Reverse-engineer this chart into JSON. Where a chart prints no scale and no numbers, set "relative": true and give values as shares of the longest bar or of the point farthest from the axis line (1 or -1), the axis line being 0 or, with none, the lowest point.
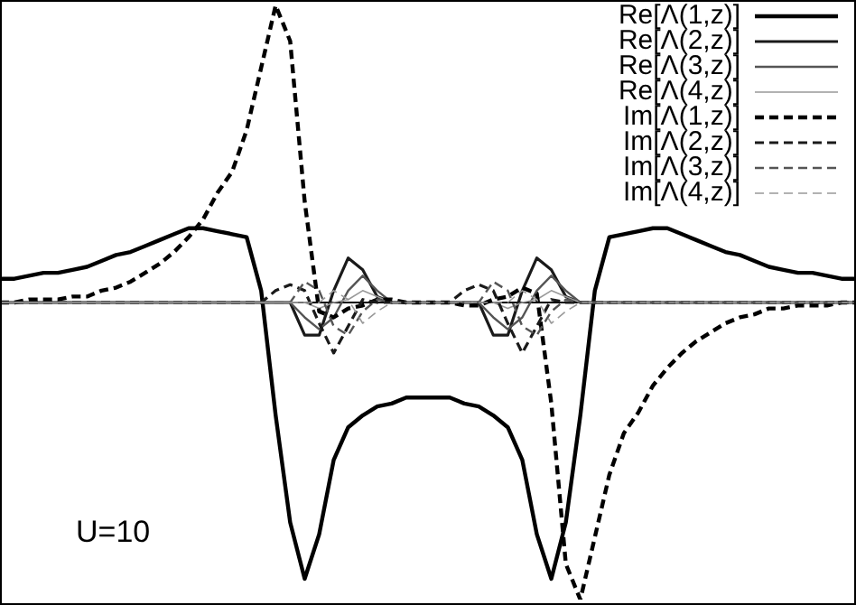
{
  "chart_data": {
    "type": "line",
    "relative": true,
    "tick_labels": false,
    "grid": false,
    "legend": "top right",
    "marker": "none",
    "categories": [
      null,
      null,
      null,
      null,
      null,
      null,
      null,
      null,
      null,
      null,
      null,
      null,
      null,
      null,
      null,
      null,
      null,
      null,
      null,
      null,
      null,
      null,
      null,
      null,
      null,
      null,
      null,
      null,
      null,
      null,
      null,
      null,
      null,
      null,
      null,
      null,
      null,
      null,
      null,
      null,
      null,
      null,
      null,
      null,
      null,
      null,
      null,
      null,
      null,
      null,
      null,
      null,
      null,
      null,
      null,
      null,
      null,
      null,
      null,
      null
    ],
    "annotations": [
      "U=10"
    ],
    "series": [
      {
        "name": "Re[Λ(1,z)]",
        "color": "#000000",
        "line_style": "solid",
        "values": [
          0.08,
          0.08,
          0.09,
          0.1,
          0.1,
          0.11,
          0.12,
          0.14,
          0.16,
          0.17,
          0.19,
          0.21,
          0.23,
          0.25,
          0.25,
          0.24,
          0.23,
          0.22,
          0.04,
          -0.38,
          -0.74,
          -0.93,
          -0.78,
          -0.53,
          -0.42,
          -0.38,
          -0.35,
          -0.34,
          -0.32,
          -0.32,
          -0.32,
          -0.32,
          -0.34,
          -0.35,
          -0.38,
          -0.42,
          -0.53,
          -0.78,
          -0.93,
          -0.74,
          -0.38,
          0.04,
          0.22,
          0.23,
          0.24,
          0.25,
          0.25,
          0.23,
          0.21,
          0.19,
          0.17,
          0.16,
          0.14,
          0.12,
          0.11,
          0.1,
          0.1,
          0.09,
          0.08,
          0.08
        ]
      },
      {
        "name": "Re[Λ(2,z)]",
        "color": "#1a1a1a",
        "line_style": "solid",
        "values": [
          0,
          0,
          0,
          0,
          0,
          0,
          0,
          0,
          0,
          0,
          0,
          0,
          0,
          0,
          0,
          0,
          0,
          0,
          0,
          0,
          0,
          -0.11,
          -0.11,
          0.04,
          0.15,
          0.11,
          0.02,
          0,
          0,
          0,
          0,
          0,
          0,
          0,
          -0.11,
          -0.11,
          0.04,
          0.15,
          0.11,
          0.02,
          0,
          0,
          0,
          0,
          0,
          0,
          0,
          0,
          0,
          0,
          0,
          0,
          0,
          0,
          0,
          0,
          0,
          0,
          0,
          0
        ]
      },
      {
        "name": "Re[Λ(3,z)]",
        "color": "#555555",
        "line_style": "solid",
        "values": [
          0,
          0,
          0,
          0,
          0,
          0,
          0,
          0,
          0,
          0,
          0,
          0,
          0,
          0,
          0,
          0,
          0,
          0,
          0,
          0,
          0,
          -0.05,
          -0.09,
          -0.05,
          0.04,
          0.09,
          0.04,
          0,
          0,
          0,
          0,
          0,
          0,
          0,
          -0.05,
          -0.09,
          -0.05,
          0.04,
          0.09,
          0.04,
          0,
          0,
          0,
          0,
          0,
          0,
          0,
          0,
          0,
          0,
          0,
          0,
          0,
          0,
          0,
          0,
          0,
          0,
          0,
          0
        ]
      },
      {
        "name": "Re[Λ(4,z)]",
        "color": "#999999",
        "line_style": "solid",
        "values": [
          0,
          0,
          0,
          0,
          0,
          0,
          0,
          0,
          0,
          0,
          0,
          0,
          0,
          0,
          0,
          0,
          0,
          0,
          0,
          0,
          0,
          0,
          -0.02,
          0,
          0.01,
          0.04,
          0.02,
          0,
          0,
          0,
          0,
          0,
          0,
          0,
          0,
          -0.02,
          0,
          0.01,
          0.04,
          0.02,
          0,
          0,
          0,
          0,
          0,
          0,
          0,
          0,
          0,
          0,
          0,
          0,
          0,
          0,
          0,
          0,
          0,
          0,
          0,
          0
        ]
      },
      {
        "name": "Im[Λ(1,z)]",
        "color": "#000000",
        "line_style": "dashed",
        "values": [
          0,
          0,
          0.01,
          0.01,
          0.01,
          0.02,
          0.02,
          0.04,
          0.05,
          0.07,
          0.1,
          0.13,
          0.17,
          0.22,
          0.28,
          0.37,
          0.44,
          0.58,
          0.79,
          1.0,
          0.88,
          0.34,
          -0.03,
          -0.05,
          -0.02,
          -0.01,
          0.01,
          0.01,
          0,
          0,
          0,
          0,
          -0.01,
          -0.01,
          0.01,
          0.02,
          0.05,
          0.03,
          -0.34,
          -0.88,
          -1.0,
          -0.79,
          -0.58,
          -0.44,
          -0.37,
          -0.28,
          -0.22,
          -0.17,
          -0.13,
          -0.1,
          -0.07,
          -0.05,
          -0.04,
          -0.02,
          -0.02,
          -0.01,
          -0.01,
          -0.01,
          0,
          0
        ]
      },
      {
        "name": "Im[Λ(2,z)]",
        "color": "#1a1a1a",
        "line_style": "dashed",
        "values": [
          0,
          0,
          0,
          0,
          0,
          0,
          0,
          0,
          0,
          0,
          0,
          0,
          0,
          0,
          0,
          0,
          0,
          0,
          0,
          0.04,
          0.06,
          0.04,
          -0.07,
          -0.17,
          -0.08,
          0.01,
          0,
          0,
          0,
          0,
          0,
          0,
          0.04,
          0.06,
          0.04,
          -0.07,
          -0.17,
          -0.08,
          0.01,
          0,
          0,
          0,
          0,
          0,
          0,
          0,
          0,
          0,
          0,
          0,
          0,
          0,
          0,
          0,
          0,
          0,
          0,
          0,
          0,
          0
        ]
      },
      {
        "name": "Im[Λ(3,z)]",
        "color": "#555555",
        "line_style": "dashed",
        "values": [
          0,
          0,
          0,
          0,
          0,
          0,
          0,
          0,
          0,
          0,
          0,
          0,
          0,
          0,
          0,
          0,
          0,
          0,
          0,
          0,
          0,
          0.07,
          0.04,
          -0.08,
          -0.11,
          -0.03,
          0.01,
          0,
          0,
          0,
          0,
          0,
          0,
          0,
          0.07,
          0.04,
          -0.08,
          -0.11,
          -0.03,
          0.01,
          0,
          0,
          0,
          0,
          0,
          0,
          0,
          0,
          0,
          0,
          0,
          0,
          0,
          0,
          0,
          0,
          0,
          0,
          0,
          0
        ]
      },
      {
        "name": "Im[Λ(4,z)]",
        "color": "#999999",
        "line_style": "dashed",
        "values": [
          0,
          0,
          0,
          0,
          0,
          0,
          0,
          0,
          0,
          0,
          0,
          0,
          0,
          0,
          0,
          0,
          0,
          0,
          0,
          0,
          0,
          0,
          0,
          0.04,
          0.01,
          -0.07,
          -0.03,
          0,
          0,
          0,
          0,
          0,
          0,
          0,
          0,
          0,
          0.04,
          0.01,
          -0.07,
          -0.03,
          0,
          0,
          0,
          0,
          0,
          0,
          0,
          0,
          0,
          0,
          0,
          0,
          0,
          0,
          0,
          0,
          0,
          0,
          0,
          0
        ]
      }
    ]
  }
}
